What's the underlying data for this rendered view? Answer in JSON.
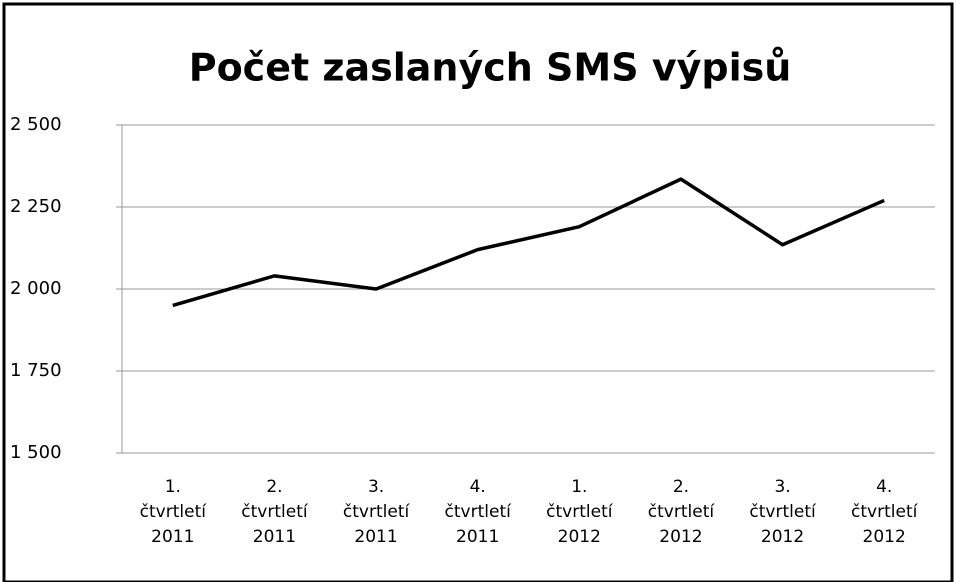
{
  "chart_data": {
    "type": "line",
    "title": "Počet zaslaných SMS výpisů",
    "categories": [
      "1.\nčtvrtletí\n2011",
      "2.\nčtvrtletí\n2011",
      "3.\nčtvrtletí\n2011",
      "4.\nčtvrtletí\n2011",
      "1.\nčtvrtletí\n2012",
      "2.\nčtvrtletí\n2012",
      "3.\nčtvrtletí\n2012",
      "4.\nčtvrtletí\n2012"
    ],
    "values": [
      1950,
      2040,
      2000,
      2120,
      2190,
      2335,
      2135,
      2270
    ],
    "color": "#000000",
    "ylim": [
      1500,
      2500
    ],
    "yticks": [
      {
        "value": 1500,
        "label": "1 500"
      },
      {
        "value": 1750,
        "label": "1 750"
      },
      {
        "value": 2000,
        "label": "2 000"
      },
      {
        "value": 2250,
        "label": "2 250"
      },
      {
        "value": 2500,
        "label": "2 500"
      }
    ],
    "grid": true
  }
}
